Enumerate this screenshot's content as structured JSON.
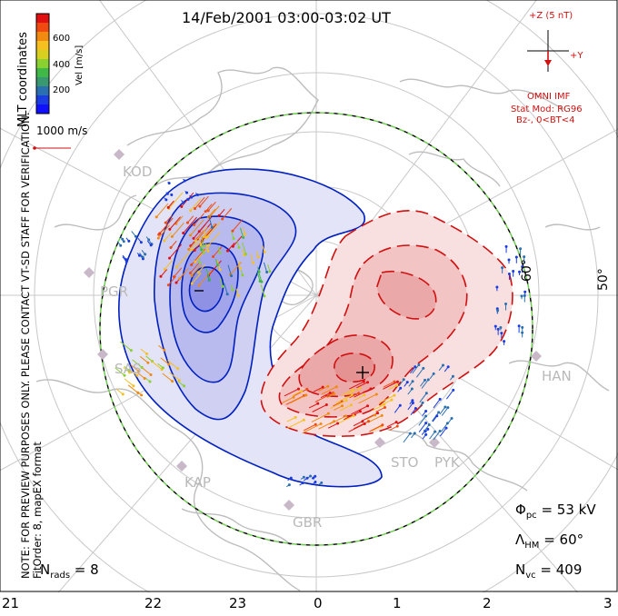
{
  "title": "14/Feb/2001 03:00-03:02 UT",
  "note_line1": "NOTE: FOR PREVIEW PURPOSES ONLY. PLEASE CONTACT VT-SD STAFF FOR VERIFICATION.",
  "note_line2": "FitOrder: 8, mapEX format",
  "mlt_coords": "MLT coordinates",
  "colorbar": {
    "label": "Vel [m/s]",
    "ticks": [
      "600",
      "400",
      "200"
    ],
    "colors": [
      "#e01010",
      "#f04a10",
      "#f08a10",
      "#f5c020",
      "#d8d020",
      "#8ad030",
      "#40b848",
      "#3a9870",
      "#2a70b0",
      "#1a3ce0",
      "#1010ff"
    ]
  },
  "ref_vector": "1000 m/s",
  "imf": {
    "z_label": "+Z (5 nT)",
    "y_label": "+Y",
    "source": "OMNI IMF",
    "model": "Stat Mod: RG96",
    "condition": "Bz-, 0<BT<4"
  },
  "stations": [
    "KOD",
    "PGR",
    "SAS",
    "KAP",
    "GBR",
    "STO",
    "PYK",
    "HAN"
  ],
  "lat_labels": [
    "60°",
    "50°"
  ],
  "mlt_ticks": [
    "21",
    "22",
    "23",
    "0",
    "1",
    "2",
    "3"
  ],
  "stats": {
    "phi_sym": "Φ",
    "phi_sub": "pc",
    "phi_val": " = 53 kV",
    "lam_sym": "Λ",
    "lam_sub": "HM",
    "lam_val": " = 60°",
    "nvc_sym": "N",
    "nvc_sub": "vc",
    "nvc_val": " = 409",
    "nrads_sym": "N",
    "nrads_sub": "rads",
    "nrads_val": " = 8"
  },
  "colors": {
    "positive_cell": "#f0a0a0",
    "negative_cell": "#a0a0f0",
    "boundary": "#40b040",
    "contour_neg": "#0020c0",
    "contour_pos": "#d01010"
  }
}
